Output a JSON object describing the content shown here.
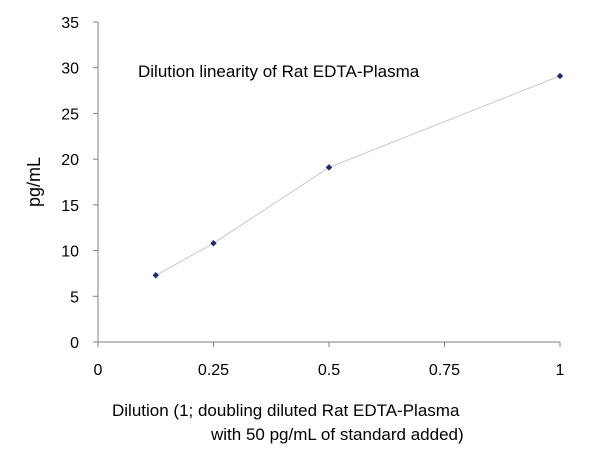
{
  "chart_data": {
    "type": "scatter",
    "title": "Dilution linearity of Rat EDTA-Plasma",
    "xlabel_lines": [
      "Dilution (1; doubling diluted Rat EDTA-Plasma",
      "with 50 pg/mL of standard added)"
    ],
    "ylabel": "pg/mL",
    "xlim": [
      0,
      1
    ],
    "ylim": [
      0,
      35
    ],
    "x_ticks": [
      0,
      0.25,
      0.5,
      0.75,
      1
    ],
    "x_tick_labels": [
      "0",
      "0.25",
      "0.5",
      "0.75",
      "1"
    ],
    "y_ticks": [
      0,
      5,
      10,
      15,
      20,
      25,
      30,
      35
    ],
    "y_tick_labels": [
      "0",
      "5",
      "10",
      "15",
      "20",
      "25",
      "30",
      "35"
    ],
    "grid": false,
    "legend": "none",
    "series": [
      {
        "x": [
          0.125,
          0.25,
          0.5,
          1
        ],
        "y": [
          7.3,
          10.8,
          19.1,
          29.1
        ],
        "marker": "diamond",
        "marker_color": "#1f2d6b",
        "line_color": "#c8c8c8"
      }
    ]
  }
}
